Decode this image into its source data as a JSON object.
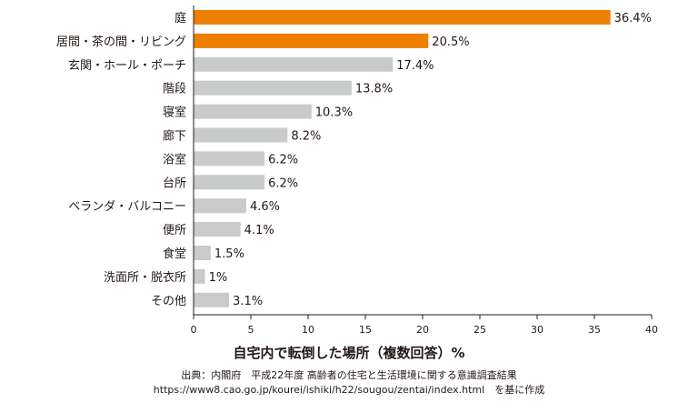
{
  "chart_data": {
    "type": "bar",
    "orientation": "horizontal",
    "categories": [
      "庭",
      "居間・茶の間・リビング",
      "玄関・ホール・ポーチ",
      "階段",
      "寝室",
      "廊下",
      "浴室",
      "台所",
      "ベランダ・バルコニー",
      "便所",
      "食堂",
      "洗面所・脱衣所",
      "その他"
    ],
    "values": [
      36.4,
      20.5,
      17.4,
      13.8,
      10.3,
      8.2,
      6.2,
      6.2,
      4.6,
      4.1,
      1.5,
      1,
      3.1
    ],
    "data_labels": [
      "36.4%",
      "20.5%",
      "17.4%",
      "13.8%",
      "10.3%",
      "8.2%",
      "6.2%",
      "6.2%",
      "4.6%",
      "4.1%",
      "1.5%",
      "1%",
      "3.1%"
    ],
    "highlight_colors": [
      "#ee8000",
      "#ee8000",
      "#c9caca",
      "#c9caca",
      "#c9caca",
      "#c9caca",
      "#c9caca",
      "#c9caca",
      "#c9caca",
      "#c9caca",
      "#c9caca",
      "#c9caca",
      "#c9caca"
    ],
    "xlabel": "自宅内で転倒した場所（複数回答）%",
    "xlim": [
      0,
      40
    ],
    "xticks": [
      "0",
      "5",
      "10",
      "15",
      "20",
      "25",
      "30",
      "35",
      "40"
    ],
    "grid": false
  },
  "source": {
    "line1": "出典：内閣府　平成22年度 高齢者の住宅と生活環境に関する意識調査結果",
    "line2": "https://www8.cao.go.jp/kourei/ishiki/h22/sougou/zentai/index.html　を基に作成"
  }
}
